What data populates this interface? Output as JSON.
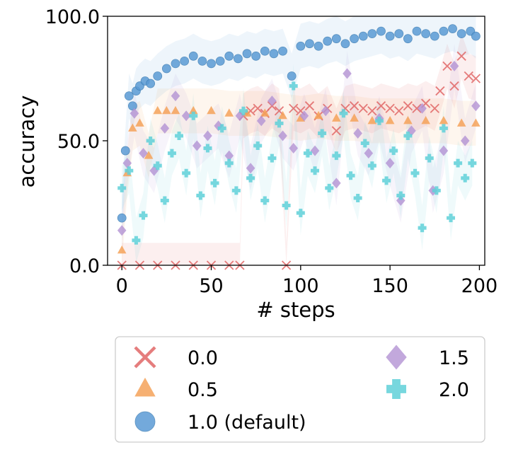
{
  "chart_data": {
    "type": "scatter",
    "xlabel": "# steps",
    "ylabel": "accuracy",
    "xlim": [
      -8,
      203
    ],
    "ylim": [
      0,
      100
    ],
    "xticks": [
      "0",
      "50",
      "100",
      "150",
      "200"
    ],
    "yticks": [
      "0.0",
      "50.0",
      "100.0"
    ],
    "grid": false,
    "legend_position": "below",
    "legend_columns": 2,
    "series": [
      {
        "name": "0.0",
        "color": "#e06666",
        "marker": "x-icon",
        "x": [
          0,
          10,
          20,
          30,
          40,
          50,
          60,
          66,
          68,
          72,
          76,
          80,
          84,
          88,
          92,
          96,
          100,
          105,
          110,
          115,
          120,
          125,
          130,
          135,
          140,
          145,
          150,
          155,
          160,
          165,
          170,
          175,
          178,
          182,
          186,
          190,
          194,
          198
        ],
        "y": [
          0,
          0,
          0,
          0,
          0,
          0,
          0,
          0,
          60,
          62,
          63,
          61,
          64,
          62,
          0,
          63,
          62,
          64,
          60,
          63,
          54,
          63,
          64,
          63,
          62,
          64,
          63,
          62,
          64,
          63,
          65,
          63,
          70,
          80,
          72,
          84,
          76,
          75
        ]
      },
      {
        "name": "0.5",
        "color": "#f4a259",
        "marker": "triangle-icon",
        "x": [
          0,
          3,
          6,
          10,
          15,
          20,
          25,
          30,
          40,
          50,
          60,
          70,
          80,
          90,
          100,
          110,
          120,
          130,
          140,
          150,
          160,
          170,
          180,
          190,
          198
        ],
        "y": [
          6,
          37,
          55,
          57,
          44,
          62,
          62,
          62,
          62,
          62,
          61,
          61,
          61,
          60,
          59,
          60,
          59,
          59,
          58,
          58,
          58,
          58,
          58,
          57,
          57
        ]
      },
      {
        "name": "1.0 (default)",
        "color": "#5b9bd5",
        "marker": "circle-icon",
        "x": [
          0,
          2,
          4,
          6,
          8,
          10,
          13,
          16,
          20,
          25,
          30,
          35,
          40,
          45,
          50,
          55,
          60,
          65,
          70,
          75,
          80,
          85,
          90,
          95,
          100,
          105,
          110,
          115,
          120,
          125,
          130,
          135,
          140,
          145,
          150,
          155,
          160,
          165,
          170,
          175,
          180,
          185,
          190,
          195,
          198
        ],
        "y": [
          19,
          46,
          68,
          64,
          70,
          72,
          74,
          73,
          76,
          79,
          81,
          82,
          84,
          82,
          81,
          82,
          84,
          83,
          85,
          84,
          86,
          85,
          86,
          76,
          88,
          89,
          88,
          90,
          91,
          89,
          91,
          92,
          93,
          94,
          92,
          93,
          91,
          94,
          93,
          92,
          94,
          95,
          93,
          94,
          92
        ]
      },
      {
        "name": "1.5",
        "color": "#b392d3",
        "marker": "diamond-icon",
        "x": [
          0,
          3,
          7,
          12,
          18,
          24,
          30,
          36,
          42,
          48,
          54,
          60,
          66,
          72,
          78,
          84,
          90,
          96,
          102,
          108,
          114,
          120,
          126,
          132,
          138,
          144,
          150,
          156,
          162,
          168,
          174,
          180,
          186,
          192,
          198
        ],
        "y": [
          14,
          41,
          61,
          45,
          38,
          55,
          68,
          60,
          48,
          52,
          56,
          44,
          60,
          39,
          58,
          66,
          52,
          47,
          60,
          46,
          62,
          33,
          77,
          53,
          45,
          59,
          41,
          26,
          54,
          63,
          30,
          46,
          80,
          50,
          64
        ]
      },
      {
        "name": "2.0",
        "color": "#5fd0d8",
        "marker": "plus-icon",
        "x": [
          0,
          4,
          8,
          12,
          16,
          20,
          24,
          28,
          32,
          36,
          40,
          44,
          48,
          52,
          56,
          60,
          64,
          68,
          72,
          76,
          80,
          84,
          88,
          92,
          96,
          100,
          104,
          108,
          112,
          116,
          120,
          124,
          128,
          132,
          136,
          140,
          144,
          148,
          152,
          156,
          160,
          164,
          168,
          172,
          176,
          180,
          184,
          188,
          192,
          196
        ],
        "y": [
          31,
          38,
          10,
          20,
          50,
          40,
          26,
          45,
          52,
          37,
          60,
          28,
          47,
          33,
          55,
          41,
          30,
          62,
          35,
          48,
          26,
          43,
          57,
          24,
          72,
          21,
          45,
          38,
          53,
          31,
          44,
          61,
          36,
          27,
          49,
          40,
          58,
          34,
          46,
          28,
          52,
          37,
          15,
          43,
          30,
          55,
          19,
          41,
          35,
          41
        ]
      }
    ]
  }
}
